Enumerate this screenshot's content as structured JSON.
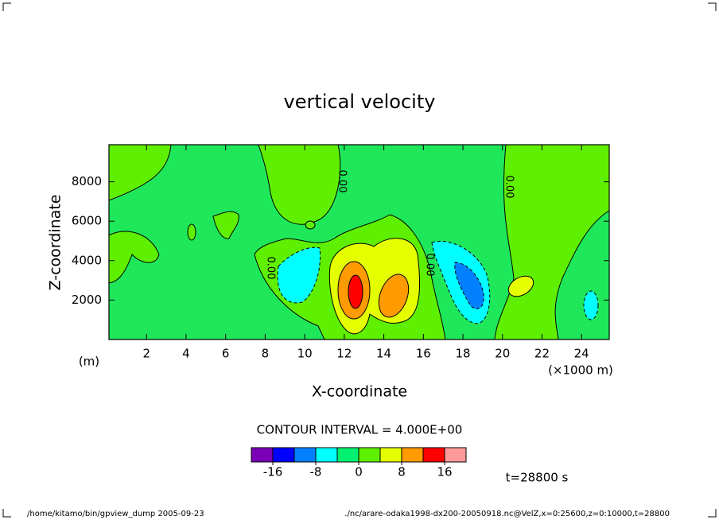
{
  "chart_data": {
    "type": "contour",
    "title": "vertical velocity",
    "xlabel": "X-coordinate",
    "ylabel": "Z-coordinate",
    "yunit": "(m)",
    "xunit": "(×1000 m)",
    "xlim": [
      0.1,
      25.4
    ],
    "ylim": [
      0,
      9880
    ],
    "xticks": [
      2,
      4,
      6,
      8,
      10,
      12,
      14,
      16,
      18,
      20,
      22,
      24
    ],
    "yticks": [
      2000,
      4000,
      6000,
      8000
    ],
    "contour_labels": [
      "0.00",
      "0.00",
      "0.00",
      "0.00"
    ],
    "interval_text": "CONTOUR INTERVAL = 4.000E+00",
    "colorbar": {
      "levels": [
        -20,
        -16,
        -12,
        -8,
        -4,
        0,
        4,
        8,
        12,
        16,
        20
      ],
      "colors": [
        "#7a00b8",
        "#0000ff",
        "#0080ff",
        "#00ffff",
        "#00f070",
        "#5ef000",
        "#e4ff00",
        "#ff9a00",
        "#ff0000",
        "#ff9a9a"
      ],
      "ticks": [
        -16,
        -8,
        0,
        8,
        16
      ]
    },
    "time_label": "t=28800 s"
  },
  "footer": {
    "left": "/home/kitamo/bin/gpview_dump  2005-09-23",
    "right": "./nc/arare-odaka1998-dx200-20050918.nc@VelZ,x=0:25600,z=0:10000,t=28800"
  }
}
